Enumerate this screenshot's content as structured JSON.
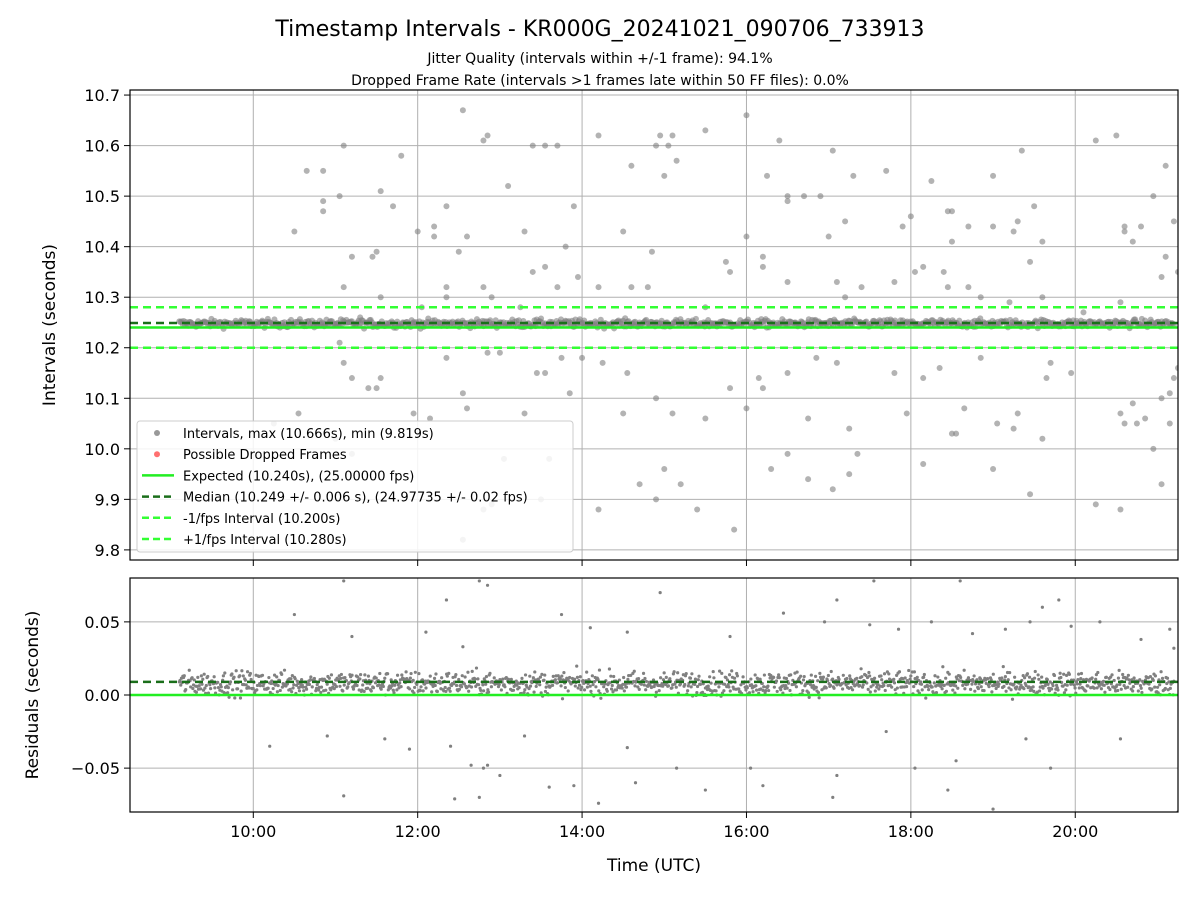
{
  "figure": {
    "title": "Timestamp Intervals - KR000G_20241021_090706_733913",
    "subtitle_1": "Jitter Quality (intervals within +/-1 frame): 94.1%",
    "subtitle_2": "Dropped Frame Rate (intervals >1 frames late within 50 FF files): 0.0%"
  },
  "colors": {
    "points": "#808080",
    "dropped": "#ff4c4c",
    "expected": "#22ee22",
    "median": "#1a6e1a",
    "interval_lines": "#33ff33",
    "grid": "#b0b0b0"
  },
  "chart_data": [
    {
      "type": "scatter",
      "ylabel": "Intervals (seconds)",
      "xlabel": "",
      "x_unit": "hours UTC",
      "xlim": [
        8.5,
        21.25
      ],
      "ylim": [
        9.78,
        10.71
      ],
      "x_tick_labels": [
        "10:00",
        "12:00",
        "14:00",
        "16:00",
        "18:00",
        "20:00"
      ],
      "y_ticks": [
        9.8,
        9.9,
        10.0,
        10.1,
        10.2,
        10.3,
        10.4,
        10.5,
        10.6,
        10.7
      ],
      "y_tick_labels": [
        "9.8",
        "9.9",
        "10.0",
        "10.1",
        "10.2",
        "10.3",
        "10.4",
        "10.5",
        "10.6",
        "10.7"
      ],
      "grid": true,
      "legend_position": "lower-left",
      "reference_lines": {
        "expected": 10.24,
        "median": 10.249,
        "minus_one_fps": 10.2,
        "plus_one_fps": 10.28
      },
      "x_range_of_data": [
        9.1,
        21.2
      ],
      "core_band": {
        "center": 10.248,
        "spread": 0.008
      },
      "legend": [
        {
          "label": "Intervals, max (10.666s), min (9.819s)",
          "kind": "point",
          "color": "#808080"
        },
        {
          "label": "Possible Dropped Frames",
          "kind": "point",
          "color": "#ff4c4c"
        },
        {
          "label": "Expected (10.240s), (25.00000 fps)",
          "kind": "solid",
          "color": "#22ee22"
        },
        {
          "label": "Median (10.249 +/- 0.006 s), (24.97735 +/- 0.02 fps)",
          "kind": "dashed",
          "color": "#1a6e1a"
        },
        {
          "label": "-1/fps Interval (10.200s)",
          "kind": "dashed",
          "color": "#33ff33"
        },
        {
          "label": "+1/fps Interval (10.280s)",
          "kind": "dashed",
          "color": "#33ff33"
        }
      ],
      "outliers": [
        [
          10.5,
          10.43
        ],
        [
          10.65,
          10.55
        ],
        [
          10.85,
          10.55
        ],
        [
          10.85,
          10.49
        ],
        [
          10.85,
          10.47
        ],
        [
          11.1,
          10.6
        ],
        [
          11.05,
          10.5
        ],
        [
          11.55,
          10.51
        ],
        [
          11.7,
          10.48
        ],
        [
          11.8,
          10.58
        ],
        [
          11.2,
          10.38
        ],
        [
          11.45,
          10.38
        ],
        [
          11.5,
          10.39
        ],
        [
          11.1,
          10.32
        ],
        [
          11.3,
          10.26
        ],
        [
          12.0,
          10.43
        ],
        [
          12.2,
          10.44
        ],
        [
          12.2,
          10.42
        ],
        [
          12.35,
          10.48
        ],
        [
          12.5,
          10.39
        ],
        [
          12.55,
          10.67
        ],
        [
          12.6,
          10.42
        ],
        [
          12.8,
          10.61
        ],
        [
          12.85,
          10.62
        ],
        [
          13.1,
          10.52
        ],
        [
          13.4,
          10.6
        ],
        [
          13.55,
          10.6
        ],
        [
          13.7,
          10.6
        ],
        [
          13.3,
          10.43
        ],
        [
          13.9,
          10.48
        ],
        [
          13.4,
          10.35
        ],
        [
          13.55,
          10.36
        ],
        [
          13.8,
          10.4
        ],
        [
          13.95,
          10.34
        ],
        [
          14.2,
          10.62
        ],
        [
          14.5,
          10.43
        ],
        [
          14.6,
          10.56
        ],
        [
          14.85,
          10.39
        ],
        [
          14.9,
          10.6
        ],
        [
          14.95,
          10.62
        ],
        [
          15.05,
          10.6
        ],
        [
          15.1,
          10.62
        ],
        [
          15.15,
          10.57
        ],
        [
          15.0,
          10.54
        ],
        [
          15.5,
          10.63
        ],
        [
          15.75,
          10.37
        ],
        [
          15.8,
          10.35
        ],
        [
          16.0,
          10.66
        ],
        [
          16.0,
          10.42
        ],
        [
          16.2,
          10.36
        ],
        [
          16.2,
          10.38
        ],
        [
          16.25,
          10.54
        ],
        [
          16.4,
          10.61
        ],
        [
          16.5,
          10.5
        ],
        [
          16.5,
          10.49
        ],
        [
          16.7,
          10.5
        ],
        [
          16.9,
          10.5
        ],
        [
          17.0,
          10.42
        ],
        [
          17.05,
          10.59
        ],
        [
          17.2,
          10.45
        ],
        [
          17.3,
          10.54
        ],
        [
          17.7,
          10.55
        ],
        [
          17.9,
          10.44
        ],
        [
          18.0,
          10.46
        ],
        [
          18.15,
          10.36
        ],
        [
          18.25,
          10.53
        ],
        [
          18.4,
          10.35
        ],
        [
          18.45,
          10.47
        ],
        [
          18.5,
          10.47
        ],
        [
          18.5,
          10.41
        ],
        [
          18.7,
          10.44
        ],
        [
          19.0,
          10.54
        ],
        [
          19.0,
          10.44
        ],
        [
          19.25,
          10.43
        ],
        [
          19.3,
          10.45
        ],
        [
          19.35,
          10.59
        ],
        [
          19.45,
          10.37
        ],
        [
          19.5,
          10.48
        ],
        [
          19.6,
          10.41
        ],
        [
          20.25,
          10.61
        ],
        [
          20.5,
          10.62
        ],
        [
          20.6,
          10.43
        ],
        [
          20.6,
          10.44
        ],
        [
          20.7,
          10.41
        ],
        [
          20.8,
          10.44
        ],
        [
          20.95,
          10.5
        ],
        [
          21.1,
          10.56
        ],
        [
          21.1,
          10.38
        ],
        [
          21.2,
          10.45
        ],
        [
          21.05,
          10.34
        ],
        [
          21.25,
          10.35
        ],
        [
          11.55,
          10.3
        ],
        [
          12.05,
          10.28
        ],
        [
          12.35,
          10.32
        ],
        [
          12.35,
          10.3
        ],
        [
          12.8,
          10.32
        ],
        [
          12.9,
          10.3
        ],
        [
          13.25,
          10.28
        ],
        [
          13.7,
          10.32
        ],
        [
          14.2,
          10.32
        ],
        [
          14.6,
          10.32
        ],
        [
          14.8,
          10.32
        ],
        [
          15.5,
          10.28
        ],
        [
          16.5,
          10.33
        ],
        [
          17.1,
          10.33
        ],
        [
          17.2,
          10.3
        ],
        [
          17.4,
          10.32
        ],
        [
          17.8,
          10.33
        ],
        [
          18.05,
          10.35
        ],
        [
          18.45,
          10.32
        ],
        [
          18.7,
          10.32
        ],
        [
          18.85,
          10.3
        ],
        [
          19.2,
          10.29
        ],
        [
          19.6,
          10.3
        ],
        [
          20.1,
          10.27
        ],
        [
          20.55,
          10.29
        ],
        [
          10.55,
          10.07
        ],
        [
          11.05,
          10.21
        ],
        [
          11.1,
          10.17
        ],
        [
          11.2,
          10.14
        ],
        [
          11.4,
          10.12
        ],
        [
          11.5,
          10.12
        ],
        [
          11.55,
          10.14
        ],
        [
          11.95,
          10.07
        ],
        [
          12.15,
          10.06
        ],
        [
          12.35,
          10.18
        ],
        [
          12.55,
          10.11
        ],
        [
          12.6,
          10.08
        ],
        [
          12.85,
          10.19
        ],
        [
          13.0,
          10.19
        ],
        [
          13.3,
          10.07
        ],
        [
          13.45,
          10.15
        ],
        [
          13.55,
          10.15
        ],
        [
          13.75,
          10.18
        ],
        [
          13.85,
          10.11
        ],
        [
          14.0,
          10.18
        ],
        [
          14.25,
          10.17
        ],
        [
          14.5,
          10.07
        ],
        [
          14.55,
          10.15
        ],
        [
          14.9,
          10.1
        ],
        [
          15.1,
          10.07
        ],
        [
          15.5,
          10.06
        ],
        [
          15.8,
          10.12
        ],
        [
          16.0,
          10.08
        ],
        [
          16.15,
          10.14
        ],
        [
          16.2,
          10.12
        ],
        [
          16.5,
          10.15
        ],
        [
          16.75,
          10.06
        ],
        [
          16.85,
          10.18
        ],
        [
          17.1,
          10.17
        ],
        [
          17.25,
          10.04
        ],
        [
          17.8,
          10.15
        ],
        [
          17.95,
          10.07
        ],
        [
          18.15,
          10.14
        ],
        [
          18.35,
          10.16
        ],
        [
          18.5,
          10.03
        ],
        [
          18.55,
          10.03
        ],
        [
          18.65,
          10.08
        ],
        [
          18.85,
          10.18
        ],
        [
          19.05,
          10.05
        ],
        [
          19.25,
          10.04
        ],
        [
          19.3,
          10.07
        ],
        [
          19.6,
          10.02
        ],
        [
          19.65,
          10.14
        ],
        [
          19.7,
          10.17
        ],
        [
          19.95,
          10.15
        ],
        [
          20.55,
          10.07
        ],
        [
          20.6,
          10.05
        ],
        [
          20.7,
          10.09
        ],
        [
          20.75,
          10.05
        ],
        [
          20.85,
          10.06
        ],
        [
          21.05,
          10.1
        ],
        [
          21.15,
          10.11
        ],
        [
          21.2,
          10.14
        ],
        [
          21.25,
          10.16
        ],
        [
          10.25,
          10.05
        ],
        [
          11.0,
          10.02
        ],
        [
          11.2,
          9.99
        ],
        [
          13.05,
          9.98
        ],
        [
          13.6,
          9.98
        ],
        [
          14.7,
          9.93
        ],
        [
          14.9,
          9.9
        ],
        [
          15.0,
          9.96
        ],
        [
          15.2,
          9.93
        ],
        [
          15.4,
          9.88
        ],
        [
          16.3,
          9.96
        ],
        [
          16.5,
          9.99
        ],
        [
          16.75,
          9.94
        ],
        [
          17.05,
          9.92
        ],
        [
          17.25,
          9.95
        ],
        [
          17.35,
          9.99
        ],
        [
          18.15,
          9.97
        ],
        [
          19.0,
          9.96
        ],
        [
          19.45,
          9.91
        ],
        [
          20.25,
          9.89
        ],
        [
          20.55,
          9.88
        ],
        [
          20.95,
          10.0
        ],
        [
          21.05,
          9.93
        ],
        [
          21.15,
          10.05
        ],
        [
          15.85,
          9.84
        ],
        [
          12.55,
          9.82
        ],
        [
          12.8,
          9.88
        ],
        [
          12.9,
          9.89
        ],
        [
          14.2,
          9.88
        ],
        [
          13.5,
          9.9
        ]
      ]
    },
    {
      "type": "scatter",
      "ylabel": "Residuals (seconds)",
      "xlabel": "Time (UTC)",
      "x_unit": "hours UTC",
      "xlim": [
        8.5,
        21.25
      ],
      "ylim": [
        -0.08,
        0.08
      ],
      "x_tick_labels": [
        "10:00",
        "12:00",
        "14:00",
        "16:00",
        "18:00",
        "20:00"
      ],
      "y_ticks": [
        -0.05,
        0.0,
        0.05
      ],
      "y_tick_labels": [
        "−0.05",
        "0.00",
        "0.05"
      ],
      "grid": true,
      "reference_lines": {
        "zero": 0.0,
        "median_offset": 0.009
      },
      "core_band": {
        "center": 0.008,
        "spread": 0.008
      },
      "outliers": [
        [
          10.5,
          0.055
        ],
        [
          10.2,
          -0.035
        ],
        [
          10.9,
          -0.028
        ],
        [
          11.1,
          -0.069
        ],
        [
          11.1,
          0.078
        ],
        [
          11.2,
          0.04
        ],
        [
          11.6,
          -0.03
        ],
        [
          11.9,
          -0.037
        ],
        [
          12.1,
          0.043
        ],
        [
          12.35,
          0.065
        ],
        [
          12.4,
          -0.035
        ],
        [
          12.45,
          -0.071
        ],
        [
          12.55,
          0.033
        ],
        [
          12.65,
          -0.048
        ],
        [
          12.75,
          0.078
        ],
        [
          12.8,
          -0.05
        ],
        [
          12.85,
          0.075
        ],
        [
          12.75,
          -0.07
        ],
        [
          12.85,
          -0.048
        ],
        [
          13.0,
          -0.055
        ],
        [
          13.3,
          -0.028
        ],
        [
          13.6,
          -0.063
        ],
        [
          13.75,
          0.055
        ],
        [
          13.9,
          -0.062
        ],
        [
          14.1,
          0.046
        ],
        [
          14.2,
          -0.074
        ],
        [
          14.55,
          0.043
        ],
        [
          14.55,
          -0.036
        ],
        [
          14.65,
          -0.06
        ],
        [
          14.95,
          0.07
        ],
        [
          15.15,
          -0.05
        ],
        [
          15.5,
          -0.065
        ],
        [
          15.8,
          0.04
        ],
        [
          16.05,
          -0.05
        ],
        [
          16.2,
          -0.062
        ],
        [
          16.45,
          0.056
        ],
        [
          16.95,
          0.05
        ],
        [
          17.1,
          0.065
        ],
        [
          17.05,
          -0.07
        ],
        [
          17.1,
          -0.055
        ],
        [
          17.5,
          0.048
        ],
        [
          17.7,
          -0.025
        ],
        [
          17.85,
          0.045
        ],
        [
          18.05,
          -0.05
        ],
        [
          18.25,
          0.05
        ],
        [
          18.45,
          -0.065
        ],
        [
          18.55,
          -0.045
        ],
        [
          18.75,
          0.042
        ],
        [
          19.0,
          -0.078
        ],
        [
          19.15,
          0.045
        ],
        [
          19.4,
          -0.03
        ],
        [
          19.45,
          0.05
        ],
        [
          19.6,
          0.06
        ],
        [
          19.7,
          -0.05
        ],
        [
          19.8,
          0.065
        ],
        [
          19.95,
          0.047
        ],
        [
          20.3,
          0.05
        ],
        [
          20.55,
          -0.03
        ],
        [
          20.8,
          0.038
        ],
        [
          21.15,
          0.045
        ],
        [
          21.25,
          -0.08
        ],
        [
          21.2,
          0.032
        ],
        [
          17.55,
          0.078
        ],
        [
          18.6,
          0.078
        ]
      ]
    }
  ],
  "axes_text": {
    "top_ylabel": "Intervals (seconds)",
    "bottom_ylabel": "Residuals (seconds)",
    "bottom_xlabel": "Time (UTC)"
  }
}
